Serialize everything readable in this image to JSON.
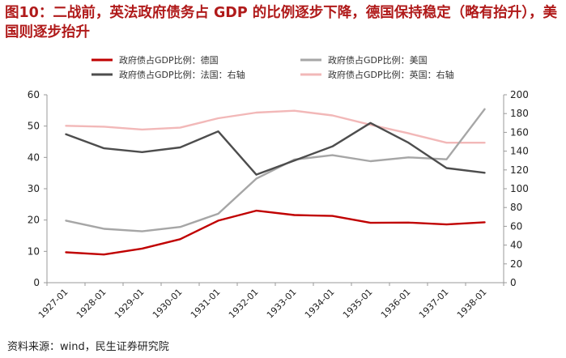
{
  "title": "图10：二战前，英法政府债务占 GDP 的比例逐步下降，德国保持稳定（略有抬升），美国则逐步抬升",
  "source": "资料来源：wind，民生证券研究院",
  "colors": {
    "germany": "#c00000",
    "usa": "#a6a6a6",
    "france": "#4d4d4d",
    "uk": "#f2b8b8",
    "axis": "#999999"
  },
  "chart_data": {
    "type": "line",
    "categories": [
      "1927-01",
      "1928-01",
      "1929-01",
      "1930-01",
      "1931-01",
      "1932-01",
      "1933-01",
      "1934-01",
      "1935-01",
      "1936-01",
      "1937-01",
      "1938-01"
    ],
    "left_axis": {
      "min": 0,
      "max": 60,
      "ticks": [
        0,
        10,
        20,
        30,
        40,
        50,
        60
      ]
    },
    "right_axis": {
      "min": 0,
      "max": 200,
      "ticks": [
        0,
        20,
        40,
        60,
        80,
        100,
        120,
        140,
        160,
        180,
        200
      ]
    },
    "series": [
      {
        "key": "germany",
        "name": "政府债占GDP比例：德国",
        "axis": "left",
        "values": [
          9.7,
          9.0,
          10.9,
          13.9,
          19.8,
          23.0,
          21.6,
          21.3,
          19.1,
          19.2,
          18.6,
          19.3
        ]
      },
      {
        "key": "usa",
        "name": "政府债占GDP比例：美国",
        "axis": "left",
        "values": [
          19.8,
          17.2,
          16.4,
          17.8,
          22.0,
          33.2,
          39.3,
          40.7,
          38.8,
          40.0,
          39.4,
          55.4
        ]
      },
      {
        "key": "france",
        "name": "政府债占GDP比例：法国：右轴",
        "axis": "right",
        "values": [
          158,
          143,
          139,
          144,
          161,
          115,
          130,
          145,
          170,
          149,
          122,
          117
        ]
      },
      {
        "key": "uk",
        "name": "政府债占GDP比例：英国：右轴",
        "axis": "right",
        "values": [
          167,
          166,
          163,
          165,
          175,
          181,
          183,
          178,
          168,
          159,
          149,
          149
        ]
      }
    ]
  }
}
